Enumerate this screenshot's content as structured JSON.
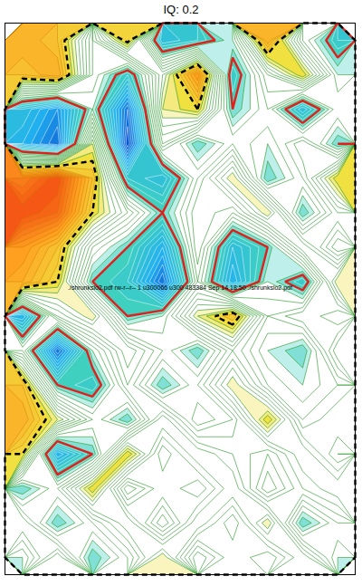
{
  "chart_data": {
    "type": "contour",
    "title": "IQ: 0.2",
    "annotations": [
      "./shrunkslo2.pdf rw-r--r-- 1 u300066 u300 483384 Sep 14 18:50 ./shrunkslo2.pdf"
    ],
    "tick_labels": false,
    "grid": {
      "values": [
        [
          -0.5,
          -0.4,
          0.1,
          -0.35,
          0.5,
          0.4,
          0.2,
          -0.5,
          0.1,
          0.4
        ],
        [
          -0.4,
          -0.5,
          0.1,
          0.4,
          -0.1,
          -0.6,
          0.4,
          0.0,
          -0.3,
          0.2
        ],
        [
          0.5,
          0.7,
          0.2,
          0.8,
          -0.2,
          -0.3,
          0.3,
          0.1,
          0.5,
          0.1
        ],
        [
          0.6,
          0.8,
          -0.2,
          0.9,
          0.0,
          0.3,
          0.1,
          0.2,
          0.0,
          0.3
        ],
        [
          -0.7,
          -0.9,
          -0.4,
          0.4,
          0.5,
          0.1,
          -0.2,
          0.3,
          0.1,
          -0.3
        ],
        [
          -0.9,
          -0.8,
          -0.3,
          0.0,
          0.3,
          0.0,
          0.1,
          -0.2,
          0.3,
          0.0
        ],
        [
          -0.6,
          -0.4,
          0.1,
          0.3,
          0.6,
          0.0,
          0.5,
          0.3,
          -0.1,
          0.2
        ],
        [
          -0.5,
          -0.3,
          0.3,
          0.4,
          0.8,
          0.1,
          0.6,
          0.2,
          0.4,
          -0.2
        ],
        [
          0.6,
          0.0,
          -0.2,
          0.3,
          0.2,
          -0.2,
          -0.4,
          0.1,
          0.0,
          0.1
        ],
        [
          0.1,
          0.8,
          0.2,
          -0.1,
          0.1,
          0.3,
          0.0,
          0.2,
          0.3,
          -0.1
        ],
        [
          -0.4,
          0.3,
          0.4,
          0.0,
          0.3,
          0.1,
          -0.2,
          0.1,
          0.2,
          0.1
        ],
        [
          -0.5,
          -0.2,
          0.1,
          0.3,
          -0.1,
          0.2,
          0.1,
          -0.3,
          0.1,
          0.0
        ],
        [
          -0.3,
          0.6,
          0.3,
          -0.3,
          0.1,
          -0.1,
          0.0,
          0.1,
          -0.1,
          0.1
        ],
        [
          0.3,
          0.1,
          -0.3,
          0.2,
          0.0,
          0.1,
          -0.1,
          0.2,
          0.0,
          -0.1
        ],
        [
          0.0,
          0.3,
          0.1,
          -0.1,
          0.2,
          -0.1,
          0.1,
          -0.2,
          0.3,
          0.1
        ],
        [
          0.2,
          -0.1,
          0.3,
          0.1,
          -0.2,
          0.2,
          0.0,
          0.1,
          -0.1,
          0.2
        ]
      ]
    },
    "levels": [
      -0.95,
      -0.9,
      -0.85,
      -0.8,
      -0.75,
      -0.7,
      -0.65,
      -0.6,
      -0.55,
      -0.5,
      -0.45,
      -0.4,
      -0.35,
      -0.3,
      -0.25,
      -0.2,
      -0.15,
      -0.1,
      -0.05,
      0,
      0.05,
      0.1,
      0.15,
      0.2,
      0.25,
      0.3,
      0.35,
      0.4,
      0.45,
      0.5,
      0.55,
      0.6,
      0.65,
      0.7,
      0.75,
      0.8,
      0.85,
      0.9,
      0.95
    ],
    "color_scale": {
      "values": [
        -1,
        -0.6,
        -0.3,
        -0.15,
        0,
        0.15,
        0.3,
        0.6,
        1
      ],
      "colors": [
        "#f04010",
        "#ffa020",
        "#f0e040",
        "#ffffff",
        "#ffffff",
        "#ffffff",
        "#40d0c0",
        "#20b0f0",
        "#0020c0"
      ]
    },
    "highlight_contours": [
      {
        "level": 0.3,
        "color": "#e0201a",
        "line_style": "solid"
      },
      {
        "level": -0.3,
        "color": "#000000",
        "line_style": "dashed"
      }
    ]
  }
}
